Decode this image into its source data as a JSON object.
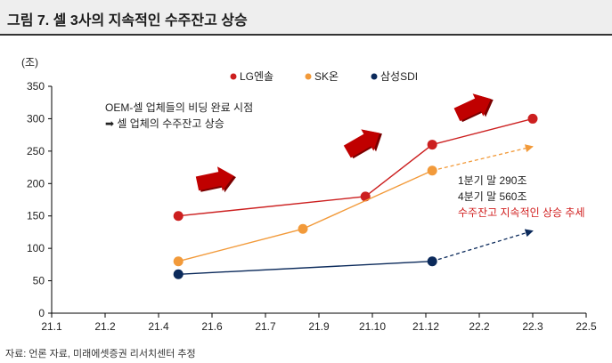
{
  "title": "그림 7. 셀 3사의 지속적인 수주잔고 상승",
  "source": "자료: 언론 자료, 미래에셋증권 리서치센터 추정",
  "annotations": {
    "oem_line1": "OEM-셀 업체들의 비딩 완료 시점",
    "oem_line2": "➡ 셀 업체의 수주잔고 상승",
    "q1": "1분기 말 290조",
    "q4": "4분기 말 560조",
    "trend": "수주잔고 지속적인 상승 추세"
  },
  "colors": {
    "lg": "#cc1f1f",
    "sk": "#f29a3a",
    "samsung": "#0b2a5b",
    "arrow": "#c00000",
    "trend_text": "#d11f1f"
  },
  "chart_data": {
    "type": "line",
    "unit_label": "(조)",
    "x_ticks": [
      "21.1",
      "21.2",
      "21.4",
      "21.6",
      "21.7",
      "21.9",
      "21.10",
      "21.12",
      "22.2",
      "22.3",
      "22.5"
    ],
    "ylim": [
      0,
      350
    ],
    "y_ticks": [
      0,
      50,
      100,
      150,
      200,
      250,
      300,
      350
    ],
    "legend_position": "top",
    "series": [
      {
        "name": "LG엔솔",
        "x": [
          2.37,
          5.87,
          7.12,
          9.0
        ],
        "values": [
          150,
          180,
          260,
          300
        ],
        "projected_to": null
      },
      {
        "name": "SK온",
        "x": [
          2.37,
          4.7,
          7.12
        ],
        "values": [
          80,
          130,
          220
        ],
        "projected_to": {
          "x": 9.0,
          "value": 257
        }
      },
      {
        "name": "삼성SDI",
        "x": [
          2.37,
          7.12
        ],
        "values": [
          60,
          80
        ],
        "projected_to": {
          "x": 9.0,
          "value": 127
        }
      }
    ]
  }
}
